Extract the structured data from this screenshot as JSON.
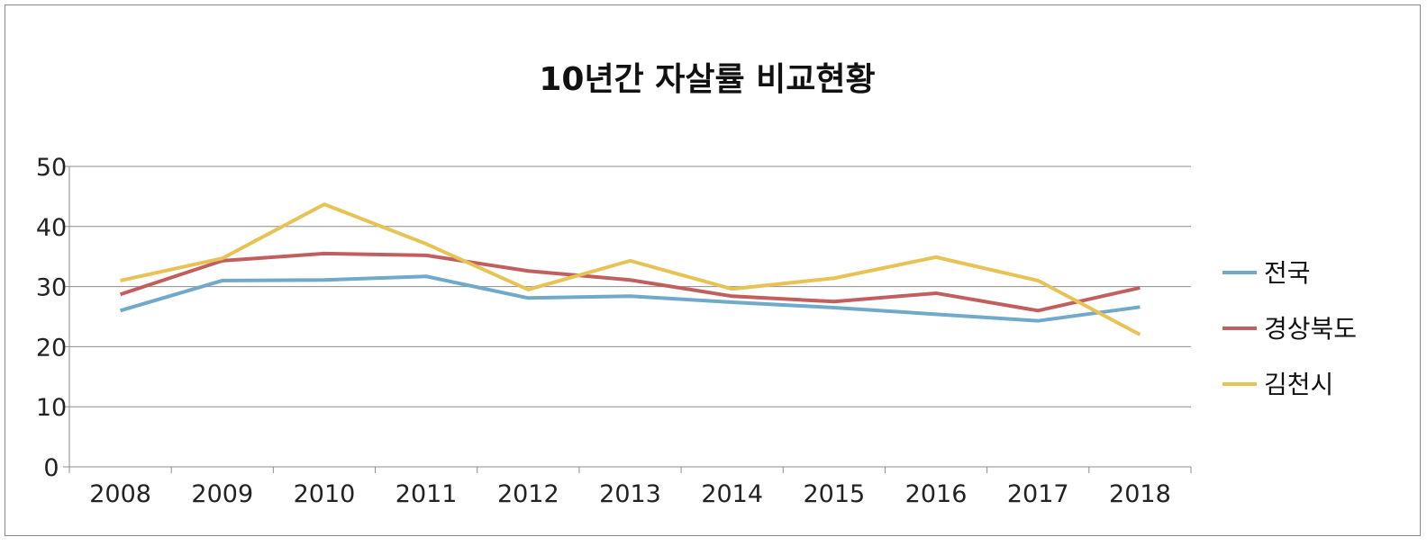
{
  "chart_data": {
    "type": "line",
    "title": "10년간 자살률 비교현황",
    "xlabel": "",
    "ylabel": "",
    "categories": [
      "2008",
      "2009",
      "2010",
      "2011",
      "2012",
      "2013",
      "2014",
      "2015",
      "2016",
      "2017",
      "2018"
    ],
    "ylim": [
      0,
      50
    ],
    "yticks": [
      0,
      10,
      20,
      30,
      40,
      50
    ],
    "grid": true,
    "legend_position": "right",
    "series": [
      {
        "name": "전국",
        "color": "#70a9c9",
        "values": [
          26.0,
          31.0,
          31.1,
          31.7,
          28.1,
          28.4,
          27.4,
          26.5,
          25.4,
          24.3,
          26.6
        ]
      },
      {
        "name": "경상북도",
        "color": "#c25f5e",
        "values": [
          28.7,
          34.3,
          35.5,
          35.2,
          32.6,
          31.1,
          28.4,
          27.5,
          28.9,
          26.0,
          29.8
        ]
      },
      {
        "name": "김천시",
        "color": "#e7c254",
        "values": [
          31.0,
          34.7,
          43.7,
          37.1,
          29.5,
          34.3,
          29.6,
          31.4,
          34.9,
          31.0,
          22.0
        ]
      }
    ]
  }
}
